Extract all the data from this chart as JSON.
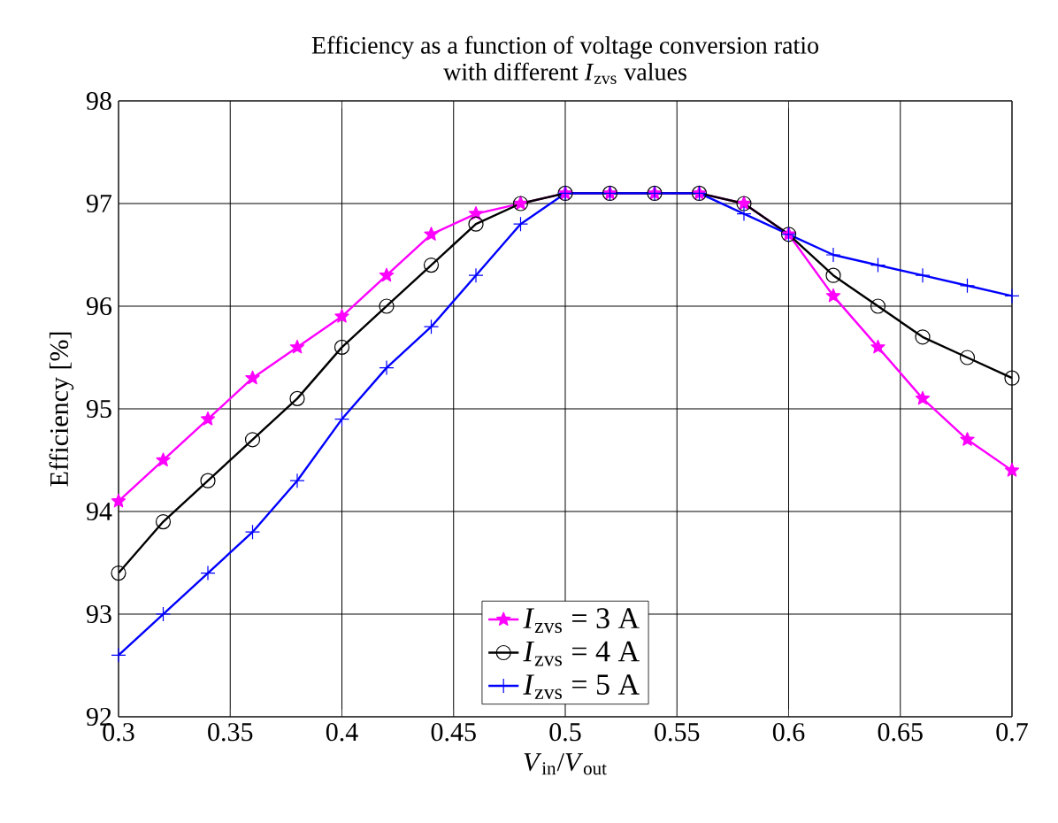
{
  "chart_data": {
    "type": "line",
    "title": "Efficiency as a function of voltage conversion ratio",
    "subtitle": "with different *I*$_{zvs}$ values",
    "xlabel": "*V*$_{in}$/*V*$_{out}$",
    "ylabel": "Efficiency [%]",
    "x": [
      0.3,
      0.32,
      0.34,
      0.36,
      0.38,
      0.4,
      0.42,
      0.44,
      0.46,
      0.48,
      0.5,
      0.52,
      0.54,
      0.56,
      0.58,
      0.6,
      0.62,
      0.64,
      0.66,
      0.68,
      0.7
    ],
    "series": [
      {
        "name": "*I*$_{zvs}$ = 3 A",
        "color": "#ff00ff",
        "marker": "star",
        "values": [
          94.1,
          94.5,
          94.9,
          95.3,
          95.6,
          95.9,
          96.3,
          96.7,
          96.9,
          97.0,
          97.1,
          97.1,
          97.1,
          97.1,
          97.0,
          96.7,
          96.1,
          95.6,
          95.1,
          94.7,
          94.4
        ]
      },
      {
        "name": "*I*$_{zvs}$ = 4 A",
        "color": "#000000",
        "marker": "circle",
        "values": [
          93.4,
          93.9,
          94.3,
          94.7,
          95.1,
          95.6,
          96.0,
          96.4,
          96.8,
          97.0,
          97.1,
          97.1,
          97.1,
          97.1,
          97.0,
          96.7,
          96.3,
          96.0,
          95.7,
          95.5,
          95.3
        ]
      },
      {
        "name": "*I*$_{zvs}$ = 5 A",
        "color": "#0000ff",
        "marker": "cross",
        "values": [
          92.6,
          93.0,
          93.4,
          93.8,
          94.3,
          94.9,
          95.4,
          95.8,
          96.3,
          96.8,
          97.1,
          97.1,
          97.1,
          97.1,
          96.9,
          96.7,
          96.5,
          96.4,
          96.3,
          96.2,
          96.1
        ]
      }
    ],
    "xlim": [
      0.3,
      0.7
    ],
    "ylim": [
      92,
      98
    ],
    "xticks": [
      0.3,
      0.35,
      0.4,
      0.45,
      0.5,
      0.55,
      0.6,
      0.65,
      0.7
    ],
    "yticks": [
      92,
      93,
      94,
      95,
      96,
      97,
      98
    ],
    "grid": true,
    "legend": "bottom",
    "line_style": "solid"
  }
}
